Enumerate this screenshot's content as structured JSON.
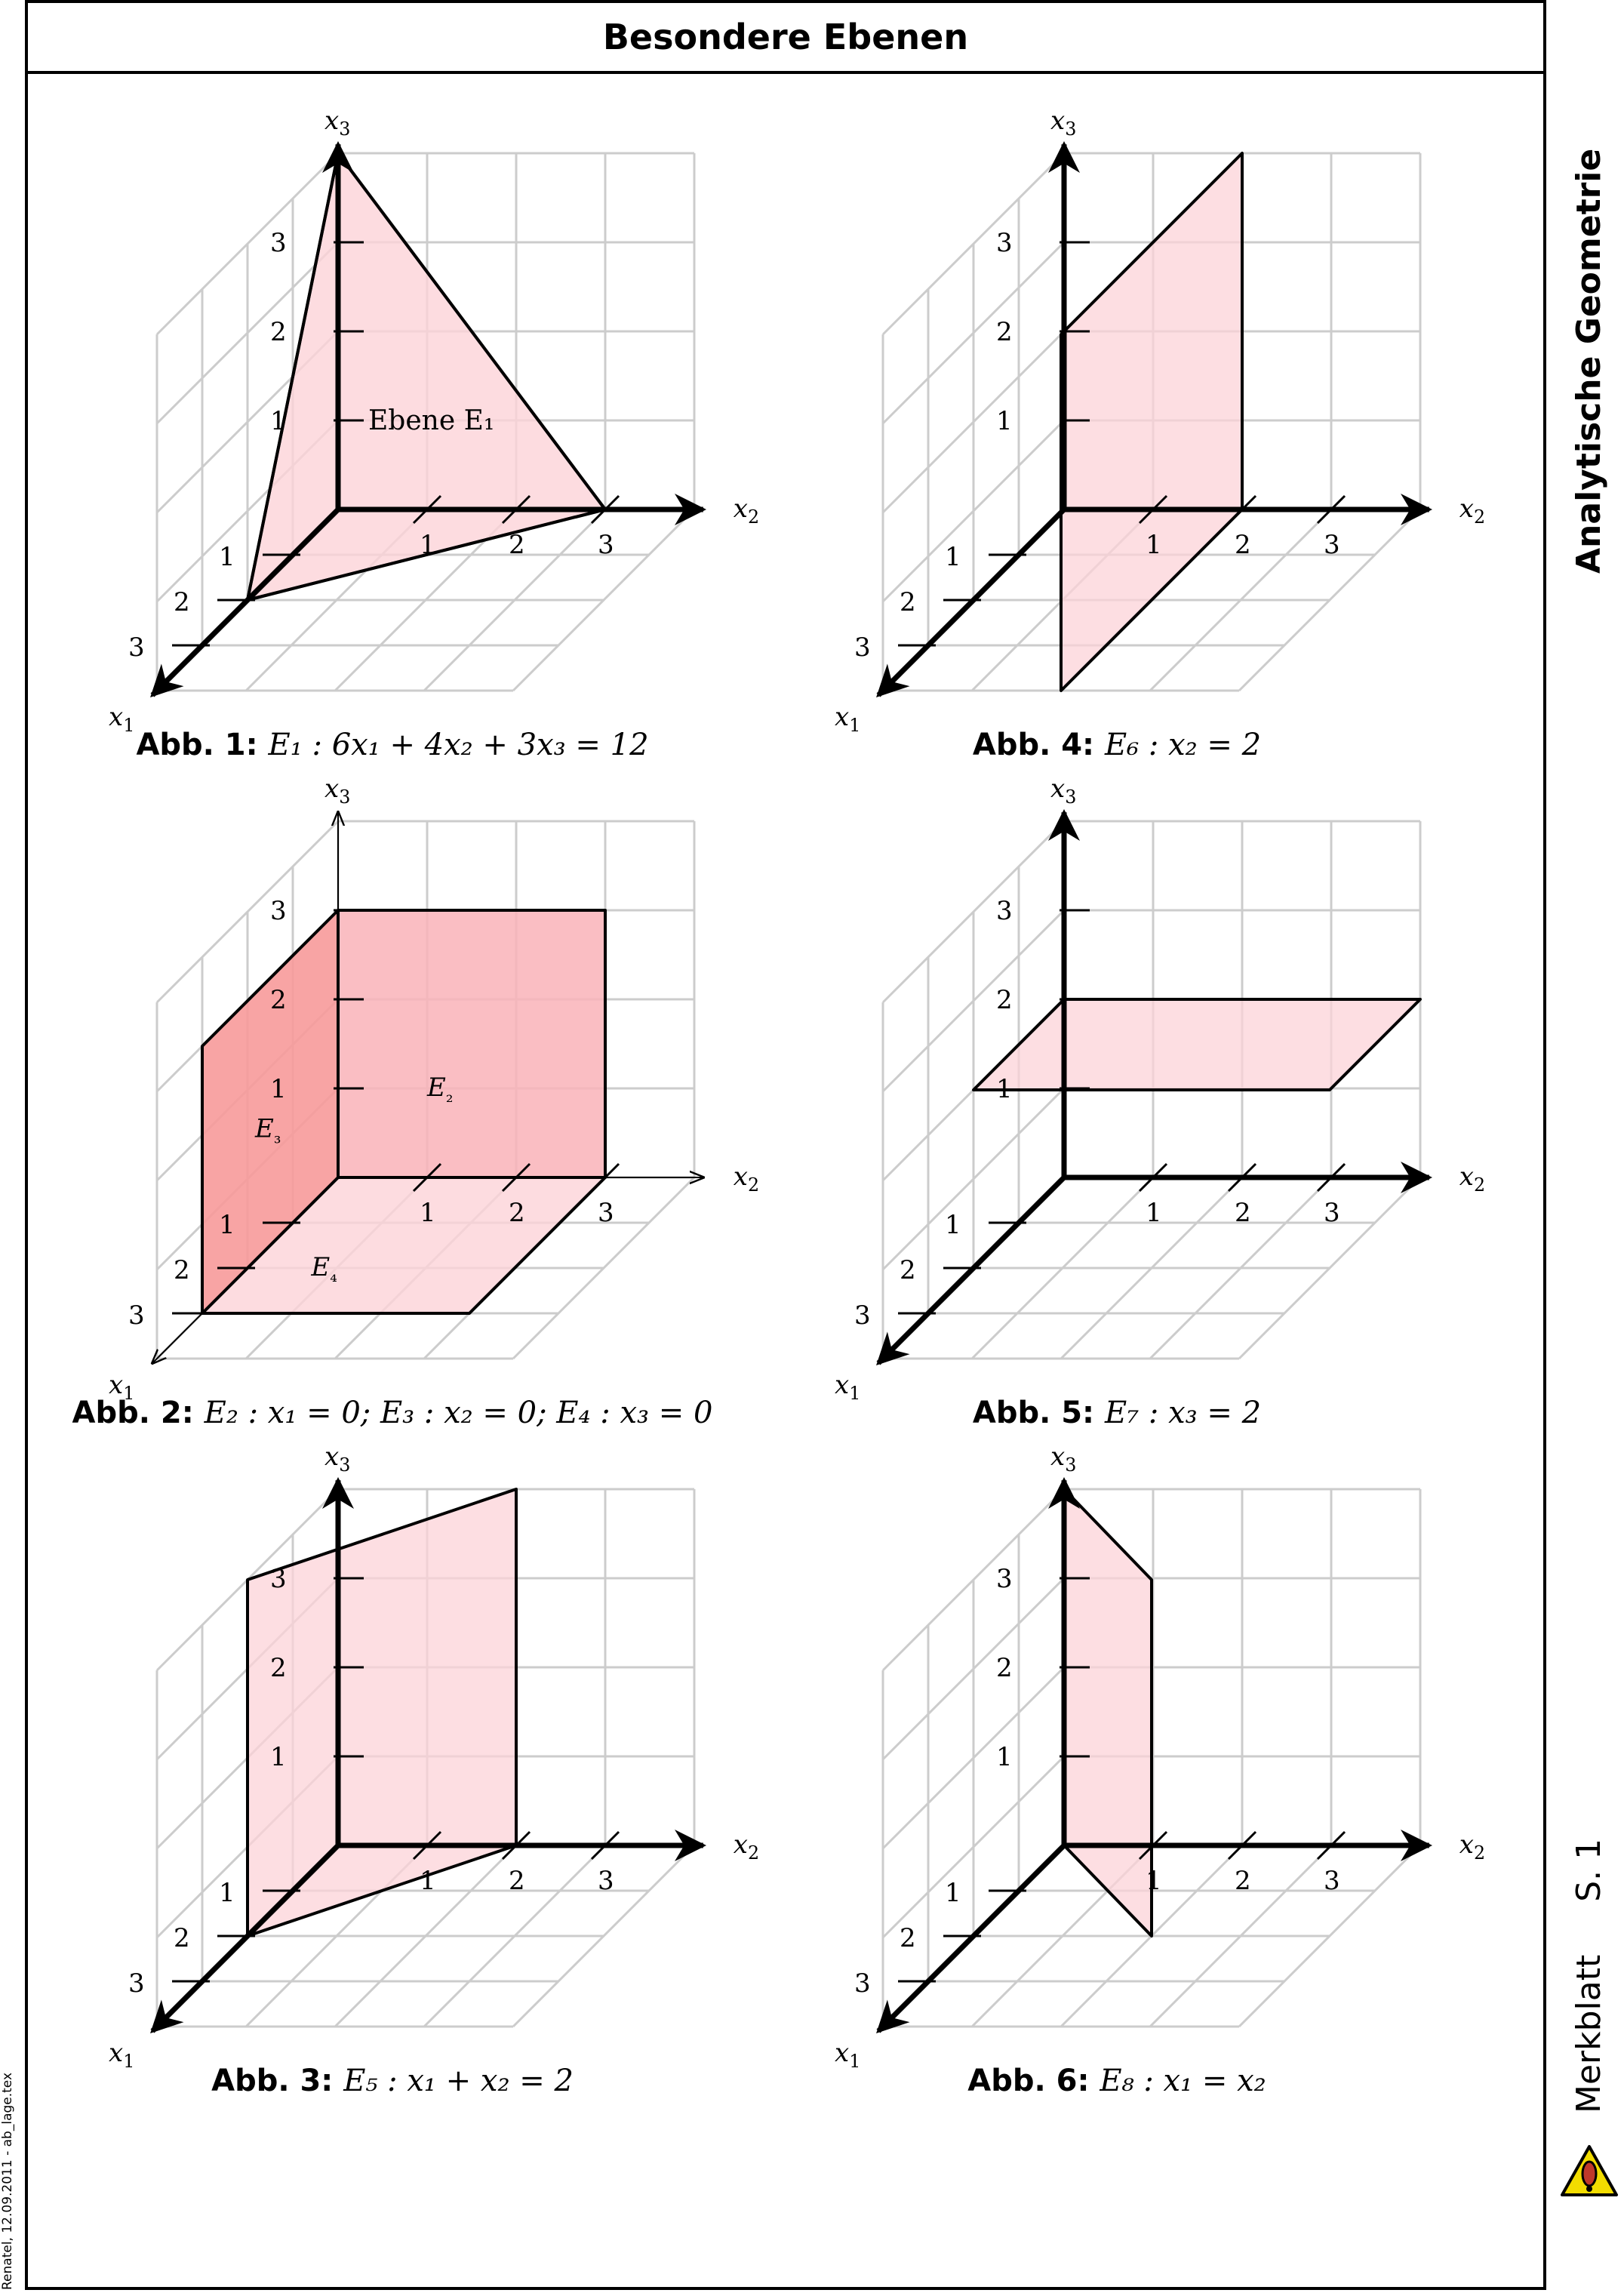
{
  "header": {
    "title": "Besondere Ebenen"
  },
  "side": {
    "subject": "Analytische Geometrie",
    "sheet": "Merkblatt",
    "page": "S. 1"
  },
  "footer": {
    "note": "Renatel, 12.09.2011 - ab_lage.tex"
  },
  "icon": {
    "name": "warning-exclamation-icon",
    "color": "#f2dc00"
  },
  "colors": {
    "plane_fill": "#fcd3d8",
    "plane_fill_dark": "#f79a9a",
    "grid": "#cccccc",
    "axis": "#000000"
  },
  "axes": {
    "x1": "x1",
    "x2": "x2",
    "x3": "x3"
  },
  "ticks": [
    "1",
    "2",
    "3"
  ],
  "figures": [
    {
      "id": "abb1",
      "caption_label": "Abb. 1:",
      "equation": "E₁ : 6x₁ + 4x₂ + 3x₃ = 12",
      "plane_label": "Ebene E₁"
    },
    {
      "id": "abb2",
      "caption_label": "Abb. 2:",
      "equation": "E₂ : x₁ = 0; E₃ : x₂ = 0; E₄ : x₃ = 0",
      "plane_labels": [
        "E₂",
        "E₃",
        "E₄"
      ]
    },
    {
      "id": "abb3",
      "caption_label": "Abb. 3:",
      "equation": "E₅ : x₁ + x₂ = 2"
    },
    {
      "id": "abb4",
      "caption_label": "Abb. 4:",
      "equation": "E₆ : x₂ = 2"
    },
    {
      "id": "abb5",
      "caption_label": "Abb. 5:",
      "equation": "E₇ : x₃ = 2"
    },
    {
      "id": "abb6",
      "caption_label": "Abb. 6:",
      "equation": "E₈ : x₁ = x₂"
    }
  ]
}
